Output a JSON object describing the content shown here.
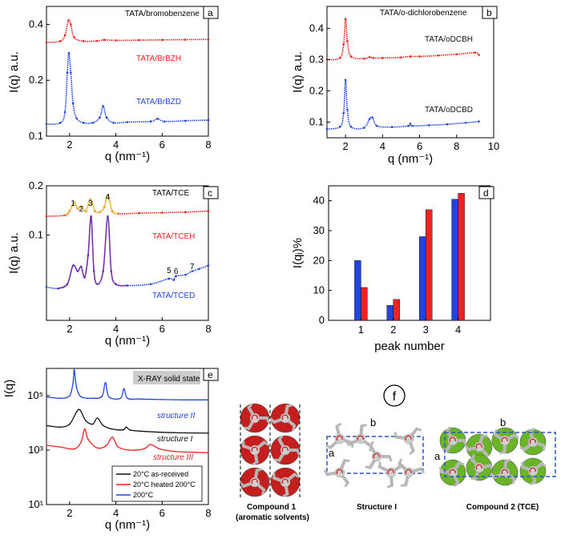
{
  "colors": {
    "red": "#ee2222",
    "blue": "#2244dd",
    "black": "#111111",
    "purple": "#7a2ea8",
    "yellow": "#e8d030",
    "green": "#6ab42a",
    "darkred": "#c41e1e",
    "dashed": "#2a56c0",
    "gray": "#b8b8b8"
  },
  "chart_data": [
    {
      "id": "a",
      "type": "line",
      "panel_label": "a",
      "title": "TATA/bromobenzene",
      "xlabel": "q (nm⁻¹)",
      "ylabel": "I(q) a.u.",
      "yscale": "log",
      "xlim": [
        1,
        8
      ],
      "ylim": [
        0.1,
        0.5
      ],
      "xticks": [
        "2",
        "4",
        "6",
        "8"
      ],
      "yticks": [
        "0.1",
        "0.2",
        "0.4"
      ],
      "series": [
        {
          "name": "TATA/BrBZH",
          "color": "red",
          "x": [
            1.0,
            1.6,
            1.8,
            1.95,
            2.05,
            2.2,
            2.6,
            3.2,
            3.5,
            4,
            5,
            6,
            7,
            8
          ],
          "y": [
            0.32,
            0.325,
            0.35,
            0.42,
            0.4,
            0.34,
            0.325,
            0.326,
            0.33,
            0.328,
            0.329,
            0.33,
            0.331,
            0.332
          ]
        },
        {
          "name": "TATA/BrBZD",
          "color": "blue",
          "x": [
            1.0,
            1.6,
            1.8,
            1.9,
            1.97,
            2.05,
            2.15,
            2.3,
            2.6,
            3.0,
            3.3,
            3.45,
            3.6,
            3.9,
            4.5,
            5.5,
            5.8,
            6.1,
            7,
            8
          ],
          "y": [
            0.116,
            0.118,
            0.135,
            0.22,
            0.28,
            0.22,
            0.15,
            0.125,
            0.118,
            0.118,
            0.126,
            0.145,
            0.126,
            0.118,
            0.119,
            0.12,
            0.124,
            0.12,
            0.121,
            0.122
          ]
        }
      ]
    },
    {
      "id": "b",
      "type": "line",
      "panel_label": "b",
      "title": "TATA/o-dichlorobenzene",
      "xlabel": "q (nm⁻¹)",
      "ylabel": "I(q) a.u.",
      "yscale": "linear",
      "xlim": [
        1,
        10
      ],
      "ylim": [
        0.05,
        0.47
      ],
      "xticks": [
        "2",
        "4",
        "6",
        "8",
        "10"
      ],
      "yticks": [
        "0.1",
        "0.2",
        "0.3",
        "0.4"
      ],
      "series": [
        {
          "name": "TATA/oDCBH",
          "color": "red",
          "x": [
            1.0,
            1.7,
            1.9,
            2.0,
            2.1,
            2.3,
            3.0,
            3.3,
            3.5,
            4,
            5,
            5.5,
            6,
            7,
            8,
            9,
            9.2
          ],
          "y": [
            0.3,
            0.305,
            0.35,
            0.43,
            0.36,
            0.31,
            0.303,
            0.308,
            0.305,
            0.305,
            0.307,
            0.31,
            0.31,
            0.313,
            0.317,
            0.322,
            0.315
          ]
        },
        {
          "name": "TATA/oDCBD",
          "color": "blue",
          "x": [
            1.0,
            1.7,
            1.9,
            2.0,
            2.1,
            2.3,
            3.0,
            3.3,
            3.45,
            3.7,
            4.5,
            5.4,
            5.5,
            5.6,
            6.5,
            7.5,
            8.5,
            9.2
          ],
          "y": [
            0.078,
            0.085,
            0.13,
            0.235,
            0.14,
            0.085,
            0.082,
            0.11,
            0.115,
            0.088,
            0.084,
            0.088,
            0.095,
            0.088,
            0.09,
            0.093,
            0.098,
            0.102
          ]
        }
      ]
    },
    {
      "id": "c",
      "type": "line",
      "panel_label": "c",
      "title": "TATA/TCE",
      "xlabel": "q (nm⁻¹)",
      "ylabel": "I(q) a.u.",
      "yscale": "log",
      "xlim": [
        1,
        8
      ],
      "ylim": [
        0.03,
        0.2
      ],
      "xticks": [
        "2",
        "4",
        "6",
        "8"
      ],
      "yticks": [
        "0.1",
        "0.2"
      ],
      "peak_labels": [
        {
          "text": "1",
          "x": 2.15
        },
        {
          "text": "2",
          "x": 2.5
        },
        {
          "text": "3",
          "x": 2.9
        },
        {
          "text": "4",
          "x": 3.65
        },
        {
          "text": "5",
          "x": 6.3
        },
        {
          "text": "6",
          "x": 6.6
        },
        {
          "text": "7",
          "x": 7.3
        }
      ],
      "series": [
        {
          "name": "TATA/TCEH",
          "color": "red",
          "x": [
            1.0,
            1.8,
            2.0,
            2.2,
            2.35,
            2.5,
            2.7,
            2.9,
            3.1,
            3.3,
            3.5,
            3.65,
            3.85,
            4.1,
            5,
            6,
            7,
            8
          ],
          "y": [
            0.13,
            0.132,
            0.14,
            0.158,
            0.145,
            0.148,
            0.14,
            0.165,
            0.14,
            0.138,
            0.148,
            0.175,
            0.14,
            0.135,
            0.136,
            0.137,
            0.138,
            0.14
          ]
        },
        {
          "name": "TATA/TCED",
          "color": "blue",
          "x": [
            1.0,
            1.5,
            1.9,
            2.15,
            2.35,
            2.5,
            2.65,
            2.8,
            2.93,
            3.05,
            3.2,
            3.45,
            3.65,
            3.8,
            4.0,
            4.5,
            5.5,
            6.3,
            6.5,
            6.6,
            7.0,
            7.3,
            7.6,
            8.0
          ],
          "y": [
            0.048,
            0.047,
            0.05,
            0.065,
            0.06,
            0.064,
            0.055,
            0.075,
            0.13,
            0.06,
            0.05,
            0.06,
            0.13,
            0.06,
            0.05,
            0.049,
            0.05,
            0.054,
            0.053,
            0.056,
            0.057,
            0.06,
            0.062,
            0.065
          ]
        }
      ]
    },
    {
      "id": "d",
      "type": "bar",
      "panel_label": "d",
      "title": "",
      "xlabel": "peak number",
      "ylabel": "I(qᵢ)%",
      "ylim": [
        0,
        45
      ],
      "categories": [
        "1",
        "2",
        "3",
        "4"
      ],
      "yticks": [
        "0",
        "10",
        "20",
        "30",
        "40"
      ],
      "series": [
        {
          "name": "blue",
          "color": "blue",
          "values": [
            20,
            5,
            28,
            40.5
          ]
        },
        {
          "name": "red",
          "color": "red",
          "values": [
            11,
            7,
            37,
            42.5
          ]
        }
      ]
    },
    {
      "id": "e",
      "type": "line",
      "panel_label": "e",
      "title": "X-RAY solid state",
      "xlabel": "q (nm⁻¹)",
      "ylabel": "I(q)",
      "yscale": "log",
      "xlim": [
        1,
        8
      ],
      "ylim": [
        10,
        1000000
      ],
      "xticks": [
        "2",
        "4",
        "6",
        "8"
      ],
      "yticks": [
        "10¹",
        "10³",
        "10⁵"
      ],
      "structure_labels": [
        {
          "text": "structure II",
          "color": "blue"
        },
        {
          "text": "structure I",
          "color": "black"
        },
        {
          "text": "structure III",
          "color": "red"
        }
      ],
      "legend": [
        "20°C as-received",
        "20°C heated 200°C",
        "200°C"
      ],
      "series": [
        {
          "name": "20°C as-received",
          "color": "black",
          "x": [
            1.0,
            1.6,
            2.0,
            2.3,
            2.45,
            2.7,
            3.0,
            3.2,
            3.45,
            3.8,
            4.3,
            4.45,
            4.6,
            5,
            6,
            7,
            8
          ],
          "y": [
            8000,
            7000,
            9000,
            25000,
            30000,
            12000,
            9000,
            15000,
            8000,
            6000,
            5500,
            7000,
            5500,
            5000,
            4500,
            4300,
            4200
          ]
        },
        {
          "name": "20°C heated 200°C",
          "color": "red",
          "x": [
            1.0,
            1.6,
            2.2,
            2.5,
            2.65,
            2.8,
            3.2,
            3.6,
            3.85,
            4.1,
            4.6,
            5.2,
            5.5,
            5.9,
            6.5,
            7,
            8
          ],
          "y": [
            1500,
            1300,
            1100,
            2000,
            6000,
            2500,
            1200,
            1500,
            3000,
            1300,
            1000,
            1100,
            1600,
            1100,
            900,
            850,
            800
          ]
        },
        {
          "name": "200°C",
          "color": "blue",
          "x": [
            1.0,
            1.6,
            2.0,
            2.15,
            2.2,
            2.3,
            2.5,
            3.0,
            3.4,
            3.55,
            3.7,
            4.2,
            4.35,
            4.5,
            5,
            6,
            7,
            8
          ],
          "y": [
            90000,
            80000,
            100000,
            300000,
            900000,
            200000,
            90000,
            80000,
            95000,
            300000,
            90000,
            80000,
            180000,
            80000,
            75000,
            72000,
            70000,
            70000
          ]
        }
      ]
    }
  ],
  "panel_f": {
    "label": "f",
    "compound1": "Compound 1\n(aromatic solvents)",
    "structure1": "Structure I",
    "compound2": "Compound 2 (TCE)",
    "axis_a": "a",
    "axis_b": "b"
  }
}
